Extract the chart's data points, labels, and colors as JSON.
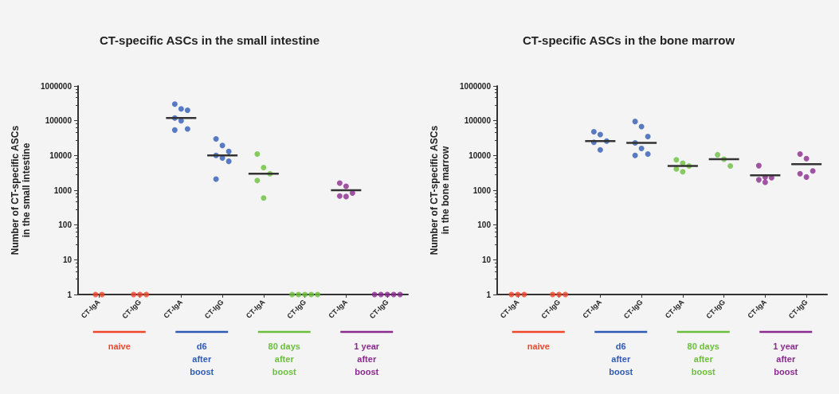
{
  "chart_data": [
    {
      "type": "scatter",
      "title": "CT-specific ASCs in the small intestine",
      "ylabel": "Number of CT-specific ASCs\nin the small intestine",
      "log": "y",
      "marker": "circle",
      "grid": false,
      "ylim": [
        1,
        1000000
      ],
      "yticks": [
        1,
        10,
        100,
        1000,
        10000,
        100000,
        1000000
      ],
      "categories": [
        "CT-IgA",
        "CT-IgG",
        "CT-IgA",
        "CT-IgG",
        "CT-IgA",
        "CT-IgG",
        "CT-IgA",
        "CT-IgG"
      ],
      "annotations": [
        "naive",
        "d6\nafter\nboost",
        "80 days\nafter\nboost",
        "1 year\nafter\nboost"
      ],
      "series": [
        {
          "colors": [
            "#f0462a",
            "#f0462a",
            "#2f5bb5",
            "#2f5bb5",
            "#6cbf3c",
            "#6cbf3c",
            "#8b2a8e",
            "#8b2a8e"
          ],
          "values": [
            1,
            1,
            300000,
            30000,
            11000,
            1,
            1600,
            1
          ]
        },
        {
          "colors": [
            "#f0462a",
            "#f0462a",
            "#2f5bb5",
            "#2f5bb5",
            "#6cbf3c",
            "#6cbf3c",
            "#8b2a8e",
            "#8b2a8e"
          ],
          "values": [
            1,
            1,
            220000,
            19500,
            4500,
            1,
            1300,
            1
          ]
        },
        {
          "colors": [
            "#f0462a",
            "#f0462a",
            "#2f5bb5",
            "#2f5bb5",
            "#6cbf3c",
            "#6cbf3c",
            "#8b2a8e",
            "#8b2a8e"
          ],
          "values": [
            null,
            1,
            200000,
            13000,
            3000,
            1,
            830,
            1
          ]
        },
        {
          "colors": [
            "#f0462a",
            "#f0462a",
            "#2f5bb5",
            "#2f5bb5",
            "#6cbf3c",
            "#6cbf3c",
            "#8b2a8e",
            "#8b2a8e"
          ],
          "values": [
            null,
            null,
            120000,
            10000,
            1900,
            1,
            680,
            1
          ]
        },
        {
          "colors": [
            "#f0462a",
            "#f0462a",
            "#2f5bb5",
            "#2f5bb5",
            "#6cbf3c",
            "#6cbf3c",
            "#8b2a8e",
            "#8b2a8e"
          ],
          "values": [
            null,
            null,
            100000,
            8500,
            600,
            1,
            660,
            1
          ]
        },
        {
          "colors": [
            "#f0462a",
            "#f0462a",
            "#2f5bb5",
            "#2f5bb5",
            "#6cbf3c",
            "#6cbf3c",
            "#8b2a8e",
            "#8b2a8e"
          ],
          "values": [
            null,
            null,
            58000,
            6800,
            null,
            null,
            null,
            null
          ]
        },
        {
          "colors": [
            "#f0462a",
            "#f0462a",
            "#2f5bb5",
            "#2f5bb5",
            "#6cbf3c",
            "#6cbf3c",
            "#8b2a8e",
            "#8b2a8e"
          ],
          "values": [
            null,
            null,
            54000,
            2100,
            null,
            null,
            null,
            null
          ]
        },
        {
          "type": "box",
          "color": "#333333",
          "boxes": [
            null,
            null,
            {
              "low": 120000,
              "q1": 120000,
              "median": 120000,
              "q3": 120000,
              "high": 120000
            },
            {
              "low": 10000,
              "q1": 10000,
              "median": 10000,
              "q3": 10000,
              "high": 10000
            },
            {
              "low": 3000,
              "q1": 3000,
              "median": 3000,
              "q3": 3000,
              "high": 3000
            },
            null,
            {
              "low": 1000,
              "q1": 1000,
              "median": 1000,
              "q3": 1000,
              "high": 1000
            },
            null
          ]
        }
      ]
    },
    {
      "type": "scatter",
      "title": "CT-specific ASCs in the bone marrow",
      "ylabel": "Number of CT-specific ASCs\nin the bone marrow",
      "log": "y",
      "marker": "circle",
      "grid": false,
      "ylim": [
        1,
        1000000
      ],
      "yticks": [
        1,
        10,
        100,
        1000,
        10000,
        100000,
        1000000
      ],
      "categories": [
        "CT-IgA",
        "CT-IgG",
        "CT-IgA",
        "CT-IgG",
        "CT-IgA",
        "CT-IgG",
        "CT-IgA",
        "CT-IgG"
      ],
      "annotations": [
        "naive",
        "d6\nafter\nboost",
        "80 days\nafter\nboost",
        "1 year\nafter\nboost"
      ],
      "series": [
        {
          "colors": [
            "#f0462a",
            "#f0462a",
            "#2f5bb5",
            "#2f5bb5",
            "#6cbf3c",
            "#6cbf3c",
            "#8b2a8e",
            "#8b2a8e"
          ],
          "values": [
            1,
            1,
            48000,
            95000,
            7500,
            10500,
            5100,
            11000
          ]
        },
        {
          "colors": [
            "#f0462a",
            "#f0462a",
            "#2f5bb5",
            "#2f5bb5",
            "#6cbf3c",
            "#6cbf3c",
            "#8b2a8e",
            "#8b2a8e"
          ],
          "values": [
            1,
            1,
            40000,
            68000,
            6000,
            7800,
            2400,
            8100
          ]
        },
        {
          "colors": [
            "#f0462a",
            "#f0462a",
            "#2f5bb5",
            "#2f5bb5",
            "#6cbf3c",
            "#6cbf3c",
            "#8b2a8e",
            "#8b2a8e"
          ],
          "values": [
            1,
            1,
            26000,
            35000,
            5000,
            5000,
            2300,
            3600
          ]
        },
        {
          "colors": [
            "#f0462a",
            "#f0462a",
            "#2f5bb5",
            "#2f5bb5",
            "#6cbf3c",
            "#6cbf3c",
            "#8b2a8e",
            "#8b2a8e"
          ],
          "values": [
            null,
            null,
            24000,
            23000,
            4100,
            null,
            2000,
            3000
          ]
        },
        {
          "colors": [
            "#f0462a",
            "#f0462a",
            "#2f5bb5",
            "#2f5bb5",
            "#6cbf3c",
            "#6cbf3c",
            "#8b2a8e",
            "#8b2a8e"
          ],
          "values": [
            null,
            null,
            14500,
            16000,
            3400,
            null,
            1700,
            2400
          ]
        },
        {
          "colors": [
            "#f0462a",
            "#f0462a",
            "#2f5bb5",
            "#2f5bb5",
            "#6cbf3c",
            "#6cbf3c",
            "#8b2a8e",
            "#8b2a8e"
          ],
          "values": [
            null,
            null,
            null,
            11000,
            null,
            null,
            null,
            null
          ]
        },
        {
          "colors": [
            "#f0462a",
            "#f0462a",
            "#2f5bb5",
            "#2f5bb5",
            "#6cbf3c",
            "#6cbf3c",
            "#8b2a8e",
            "#8b2a8e"
          ],
          "values": [
            null,
            null,
            null,
            10000,
            null,
            null,
            null,
            null
          ]
        },
        {
          "type": "box",
          "color": "#333333",
          "boxes": [
            null,
            null,
            {
              "low": 26000,
              "q1": 26000,
              "median": 26000,
              "q3": 26000,
              "high": 26000
            },
            {
              "low": 23000,
              "q1": 23000,
              "median": 23000,
              "q3": 23000,
              "high": 23000
            },
            {
              "low": 5000,
              "q1": 5000,
              "median": 5000,
              "q3": 5000,
              "high": 5000
            },
            {
              "low": 7800,
              "q1": 7800,
              "median": 7800,
              "q3": 7800,
              "high": 7800
            },
            {
              "low": 2700,
              "q1": 2700,
              "median": 2700,
              "q3": 2700,
              "high": 2700
            },
            {
              "low": 5600,
              "q1": 5600,
              "median": 5600,
              "q3": 5600,
              "high": 5600
            }
          ]
        }
      ]
    }
  ]
}
